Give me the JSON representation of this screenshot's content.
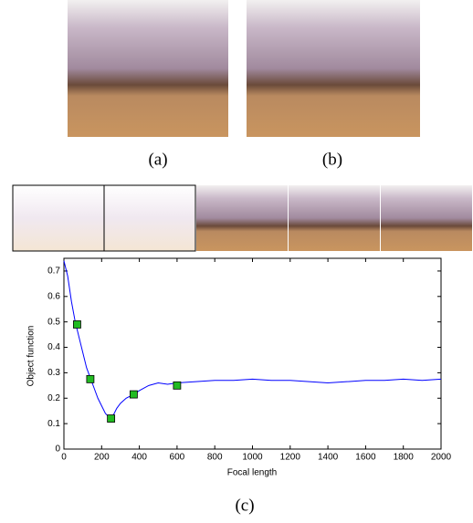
{
  "captions": {
    "a": "(a)",
    "b": "(b)",
    "c": "(c)"
  },
  "chart_data": {
    "type": "line",
    "xlabel": "Focal length",
    "ylabel": "Object function",
    "xlim": [
      0,
      2000
    ],
    "xticks": [
      0,
      200,
      400,
      600,
      800,
      1000,
      1200,
      1400,
      1600,
      1800,
      2000
    ],
    "ylim": [
      0,
      0.75
    ],
    "yticks": [
      0,
      0.1,
      0.2,
      0.3,
      0.4,
      0.5,
      0.6,
      0.7
    ],
    "series": [
      {
        "color": "#0000ff",
        "marker": "none",
        "x": [
          0,
          20,
          40,
          60,
          80,
          100,
          120,
          140,
          160,
          180,
          200,
          220,
          240,
          250,
          260,
          280,
          300,
          330,
          370,
          400,
          450,
          500,
          550,
          600,
          700,
          800,
          900,
          1000,
          1100,
          1200,
          1300,
          1400,
          1500,
          1600,
          1700,
          1800,
          1900,
          2000
        ],
        "values": [
          0.74,
          0.68,
          0.58,
          0.5,
          0.44,
          0.38,
          0.32,
          0.28,
          0.24,
          0.2,
          0.17,
          0.14,
          0.125,
          0.12,
          0.13,
          0.16,
          0.18,
          0.2,
          0.215,
          0.23,
          0.25,
          0.26,
          0.255,
          0.26,
          0.265,
          0.27,
          0.27,
          0.275,
          0.27,
          0.27,
          0.265,
          0.26,
          0.265,
          0.27,
          0.27,
          0.275,
          0.27,
          0.275
        ]
      },
      {
        "color": "#22bb22",
        "marker": "square",
        "x": [
          70,
          140,
          250,
          370,
          600
        ],
        "values": [
          0.49,
          0.275,
          0.12,
          0.215,
          0.25
        ]
      }
    ]
  }
}
